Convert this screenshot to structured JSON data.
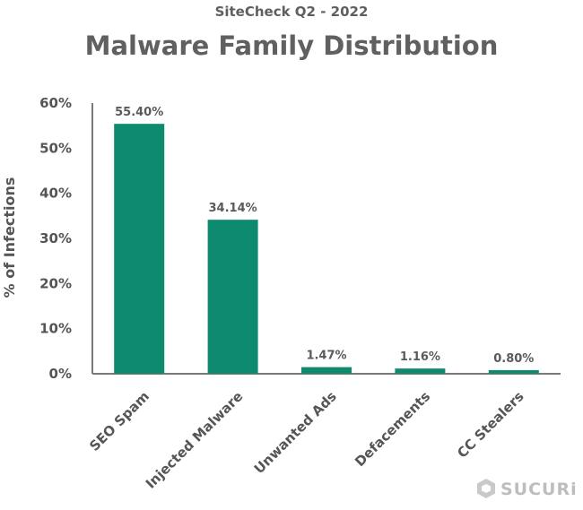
{
  "chart_data": {
    "type": "bar",
    "subtitle": "SiteCheck Q2 - 2022",
    "title": "Malware Family Distribution",
    "xlabel": "",
    "ylabel": "% of Infections",
    "categories": [
      "SEO Spam",
      "Injected Malware",
      "Unwanted Ads",
      "Defacements",
      "CC Stealers"
    ],
    "values": [
      55.4,
      34.14,
      1.47,
      1.16,
      0.8
    ],
    "data_labels": [
      "55.40%",
      "34.14%",
      "1.47%",
      "1.16%",
      "0.80%"
    ],
    "ylim": [
      0,
      60
    ],
    "yticks": [
      "0%",
      "10%",
      "20%",
      "30%",
      "40%",
      "50%",
      "60%"
    ],
    "grid": false,
    "legend": "none",
    "bar_color": "#0e8a6e"
  },
  "brand": {
    "name": "SUCURi",
    "icon": "sucuri-logo-icon"
  }
}
